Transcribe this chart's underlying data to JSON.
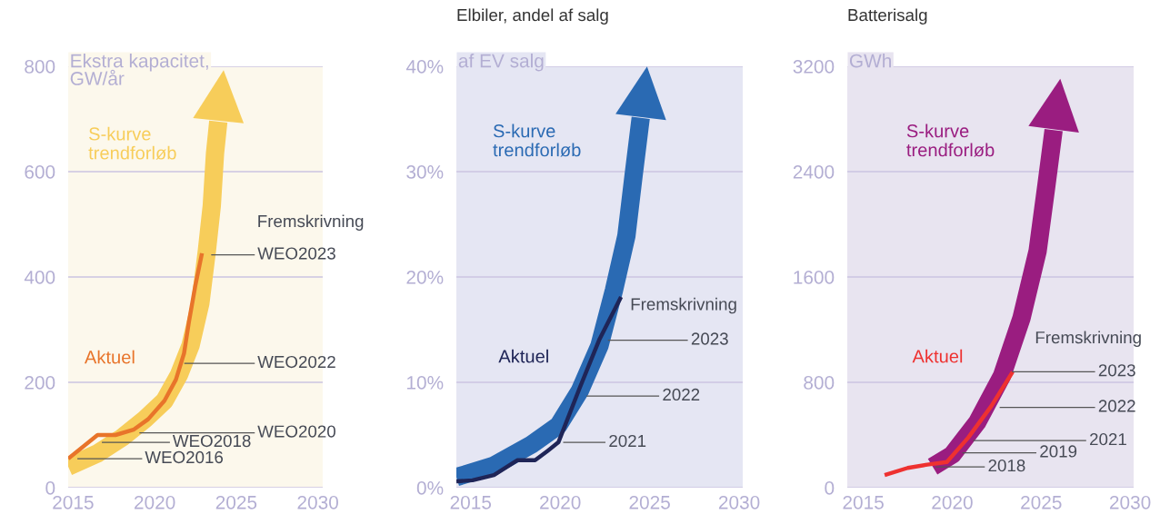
{
  "chart_data": [
    {
      "type": "line",
      "ylabel": "Ekstra kapacitet,\nGW/år",
      "xlim": [
        2014.7,
        2030.3
      ],
      "xticks": [
        2015,
        2020,
        2025,
        2030
      ],
      "ylim": [
        0,
        800
      ],
      "yticks": [
        0,
        200,
        400,
        600,
        800
      ],
      "grid": "y",
      "legend": false,
      "series": [
        {
          "name": "S-kurve\ntrendforløb",
          "color": "#f7cd5a",
          "x": [
            2014.7,
            2016.5,
            2018,
            2019.4,
            2020.6,
            2021.5,
            2022.2,
            2022.8,
            2023.2,
            2023.5,
            2023.7,
            2023.9
          ],
          "values": [
            40,
            65,
            95,
            130,
            165,
            215,
            270,
            350,
            450,
            535,
            635,
            695
          ]
        },
        {
          "name": "Aktuel",
          "color": "#e8742a",
          "x": [
            2014.7,
            2016.5,
            2017.6,
            2018.7,
            2019.6,
            2020.6,
            2021.3,
            2021.8,
            2022.1,
            2022.5,
            2022.9
          ],
          "values": [
            55,
            100,
            100,
            110,
            130,
            165,
            205,
            255,
            315,
            385,
            445
          ]
        }
      ],
      "annotations": [
        "Fremskrivning",
        {
          "text": "WEO2016",
          "x": 2015.3,
          "y": 55
        },
        {
          "text": "WEO2018",
          "x": 2016.8,
          "y": 86
        },
        {
          "text": "WEO2020",
          "x": 2019.1,
          "y": 104
        },
        {
          "text": "WEO2022",
          "x": 2021.85,
          "y": 236
        },
        {
          "text": "WEO2023",
          "x": 2023.5,
          "y": 442
        }
      ]
    },
    {
      "type": "line",
      "title": "Elbiler, andel af salg",
      "ylabel": "af EV salg",
      "xlim": [
        2014.2,
        2030.2
      ],
      "xticks": [
        2015,
        2020,
        2025,
        2030
      ],
      "ylim": [
        0,
        40
      ],
      "yticks": [
        {
          "value": 0,
          "label": "0%"
        },
        {
          "value": 10,
          "label": "10%"
        },
        {
          "value": 20,
          "label": "20%"
        },
        {
          "value": 30,
          "label": "30%"
        },
        {
          "value": 40,
          "label": "40%"
        }
      ],
      "grid": "y",
      "legend": false,
      "series": [
        {
          "name": "S-kurve\ntrendforløb",
          "color": "#2a6ab3",
          "x": [
            2014.2,
            2016.3,
            2018.4,
            2019.9,
            2021.1,
            2022.2,
            2023.0,
            2023.7,
            2024.1,
            2024.5
          ],
          "values": [
            1.0,
            2.1,
            4.1,
            5.9,
            9.2,
            13.5,
            18.7,
            23.9,
            29.6,
            35.1
          ]
        },
        {
          "name": "Aktuel",
          "color": "#1f2557",
          "x": [
            2014.2,
            2015.1,
            2016.3,
            2017.6,
            2018.6,
            2019.3,
            2019.9,
            2021.1,
            2022.2,
            2023.4
          ],
          "values": [
            0.6,
            0.7,
            1.2,
            2.6,
            2.6,
            3.5,
            4.3,
            9.5,
            14.1,
            18.1
          ]
        }
      ],
      "annotations": [
        "Fremskrivning",
        {
          "text": "2021",
          "x": 2020.2,
          "y": 4.3
        },
        {
          "text": "2022",
          "x": 2021.5,
          "y": 8.7
        },
        {
          "text": "2023",
          "x": 2022.7,
          "y": 14.0
        }
      ]
    },
    {
      "type": "line",
      "title": "Batterisalg",
      "ylabel": "GWh",
      "xlim": [
        2014.1,
        2030.2
      ],
      "xticks": [
        2015,
        2020,
        2025,
        2030
      ],
      "ylim": [
        0,
        3200
      ],
      "yticks": [
        0,
        800,
        1600,
        2400,
        3200
      ],
      "grid": "y",
      "legend": false,
      "series": [
        {
          "name": "S-kurve\ntrendforløb",
          "color": "#9a1d80",
          "x": [
            2018.9,
            2020.0,
            2021.4,
            2022.8,
            2023.9,
            2024.8,
            2025.3,
            2025.7
          ],
          "values": [
            160,
            250,
            495,
            850,
            1290,
            1795,
            2300,
            2715
          ]
        },
        {
          "name": "Aktuel",
          "color": "#ee3130",
          "x": [
            2016.2,
            2017.5,
            2018.6,
            2019.7,
            2020.9,
            2022.2,
            2023.4
          ],
          "values": [
            95,
            150,
            175,
            195,
            380,
            620,
            880
          ]
        }
      ],
      "annotations": [
        "Fremskrivning",
        {
          "text": "2018",
          "x": 2019.1,
          "y": 157
        },
        {
          "text": "2019",
          "x": 2020.6,
          "y": 265
        },
        {
          "text": "2021",
          "x": 2021.2,
          "y": 357
        },
        {
          "text": "2022",
          "x": 2022.7,
          "y": 610
        },
        {
          "text": "2023",
          "x": 2023.4,
          "y": 880
        }
      ]
    }
  ]
}
